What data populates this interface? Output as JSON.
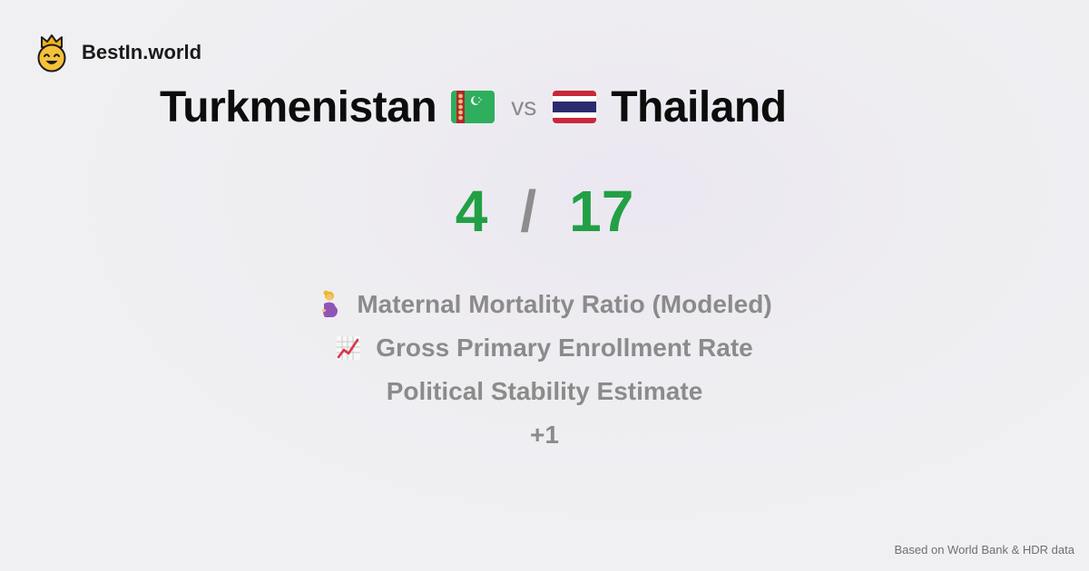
{
  "brand": {
    "name": "BestIn.world",
    "logo_icon": "crowned-smiley-icon"
  },
  "comparison": {
    "left_country": "Turkmenistan",
    "left_flag_icon": "turkmenistan-flag-icon",
    "vs_label": "vs",
    "right_country": "Thailand",
    "right_flag_icon": "thailand-flag-icon"
  },
  "score": {
    "left": "4",
    "separator": "/",
    "right": "17",
    "color": "#22a045"
  },
  "metrics": [
    {
      "label": "Maternal Mortality Ratio (Modeled)",
      "icon": "pregnant-woman-icon"
    },
    {
      "label": "Gross Primary Enrollment Rate",
      "icon": "chart-increasing-icon"
    },
    {
      "label": "Political Stability Estimate",
      "icon": ""
    },
    {
      "label": "+1",
      "icon": ""
    }
  ],
  "footer": {
    "source_text": "Based on World Bank & HDR data"
  }
}
